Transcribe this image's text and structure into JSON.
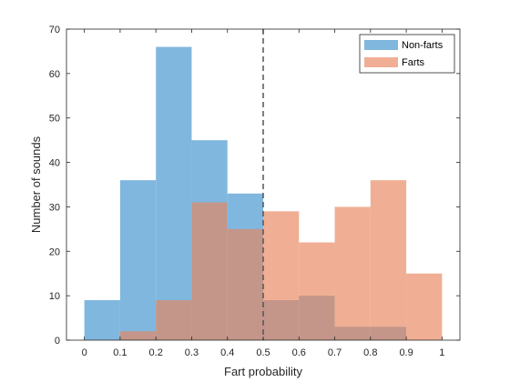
{
  "chart_data": {
    "type": "histogram",
    "xlabel": "Fart probability",
    "ylabel": "Number of sounds",
    "xlim": [
      -0.05,
      1.05
    ],
    "ylim": [
      0,
      70
    ],
    "xticks": [
      0,
      0.1,
      0.2,
      0.3,
      0.4,
      0.5,
      0.6,
      0.7,
      0.8,
      0.9,
      1
    ],
    "xtick_labels": [
      "0",
      "0.1",
      "0.2",
      "0.3",
      "0.4",
      "0.5",
      "0.6",
      "0.7",
      "0.8",
      "0.9",
      "1"
    ],
    "yticks": [
      0,
      10,
      20,
      30,
      40,
      50,
      60,
      70
    ],
    "ytick_labels": [
      "0",
      "10",
      "20",
      "30",
      "40",
      "50",
      "60",
      "70"
    ],
    "bin_edges": [
      0,
      0.1,
      0.2,
      0.3,
      0.4,
      0.5,
      0.6,
      0.7,
      0.8,
      0.9,
      1.0
    ],
    "series": [
      {
        "name": "Non-farts",
        "color": "#80b7de",
        "opacity": 1.0,
        "values": [
          9,
          36,
          66,
          45,
          33,
          9,
          10,
          3,
          3,
          0
        ]
      },
      {
        "name": "Farts",
        "color": "#e8845a",
        "opacity": 0.65,
        "values": [
          0,
          2,
          9,
          31,
          25,
          29,
          22,
          30,
          36,
          15
        ]
      }
    ],
    "threshold_line": {
      "x": 0.5,
      "style": "dashed",
      "color": "#555555"
    },
    "legend": {
      "position": "top-right"
    },
    "grid": false
  }
}
